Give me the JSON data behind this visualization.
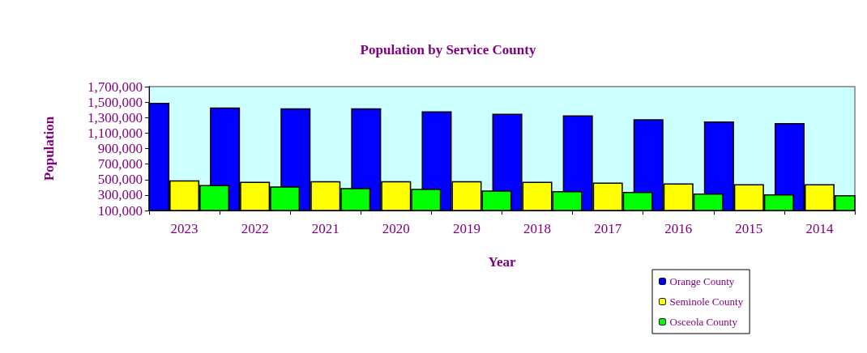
{
  "chart_data": {
    "type": "bar",
    "title": "Population by Service County",
    "xlabel": "Year",
    "ylabel": "Population",
    "categories": [
      "2023",
      "2022",
      "2021",
      "2020",
      "2019",
      "2018",
      "2017",
      "2016",
      "2015",
      "2014"
    ],
    "series": [
      {
        "name": "Orange County",
        "color": "#0000ff",
        "values": [
          1490000,
          1430000,
          1420000,
          1420000,
          1380000,
          1350000,
          1330000,
          1280000,
          1250000,
          1230000
        ]
      },
      {
        "name": "Seminole County",
        "color": "#ffff00",
        "values": [
          490000,
          470000,
          480000,
          480000,
          480000,
          470000,
          460000,
          450000,
          440000,
          440000
        ]
      },
      {
        "name": "Osceola County",
        "color": "#00ff00",
        "values": [
          430000,
          410000,
          390000,
          380000,
          360000,
          350000,
          340000,
          320000,
          310000,
          300000
        ]
      }
    ],
    "ylim": [
      100000,
      1700000
    ],
    "yticks": [
      {
        "value": 100000,
        "label": "100,000"
      },
      {
        "value": 300000,
        "label": "300,000"
      },
      {
        "value": 500000,
        "label": "500,000"
      },
      {
        "value": 700000,
        "label": "700,000"
      },
      {
        "value": 900000,
        "label": "900,000"
      },
      {
        "value": 1100000,
        "label": "1,100,000"
      },
      {
        "value": 1300000,
        "label": "1,300,000"
      },
      {
        "value": 1500000,
        "label": "1,500,000"
      },
      {
        "value": 1700000,
        "label": "1,700,000"
      }
    ],
    "grid": false,
    "legend": "bottom right"
  }
}
